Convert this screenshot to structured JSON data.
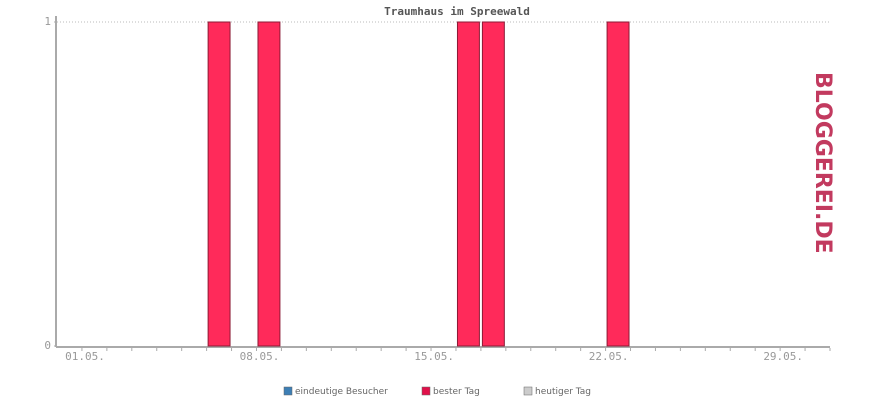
{
  "chart_data": {
    "type": "bar",
    "title": "Traumhaus im Spreewald",
    "categories": [
      "01.05.",
      null,
      null,
      null,
      null,
      null,
      null,
      "08.05.",
      null,
      null,
      null,
      null,
      null,
      null,
      "15.05.",
      null,
      null,
      null,
      null,
      null,
      null,
      "22.05.",
      null,
      null,
      null,
      null,
      null,
      null,
      "29.05.",
      null,
      null
    ],
    "values": [
      0,
      0,
      0,
      0,
      0,
      0,
      1,
      0,
      1,
      0,
      0,
      0,
      0,
      0,
      0,
      0,
      1,
      1,
      0,
      0,
      0,
      0,
      1,
      0,
      0,
      0,
      0,
      0,
      0,
      0,
      0
    ],
    "color": "#ff2a5a",
    "ylim": [
      0,
      1
    ],
    "yticks": [
      0,
      1
    ],
    "grid": true,
    "legend": [
      {
        "label": "eindeutige Besucher",
        "color": "#3d7fb5"
      },
      {
        "label": "bester Tag",
        "color": "#e0104a"
      },
      {
        "label": "heutiger Tag",
        "color": "#cccccc"
      }
    ]
  },
  "logo": "BLOGGEREI.DE"
}
